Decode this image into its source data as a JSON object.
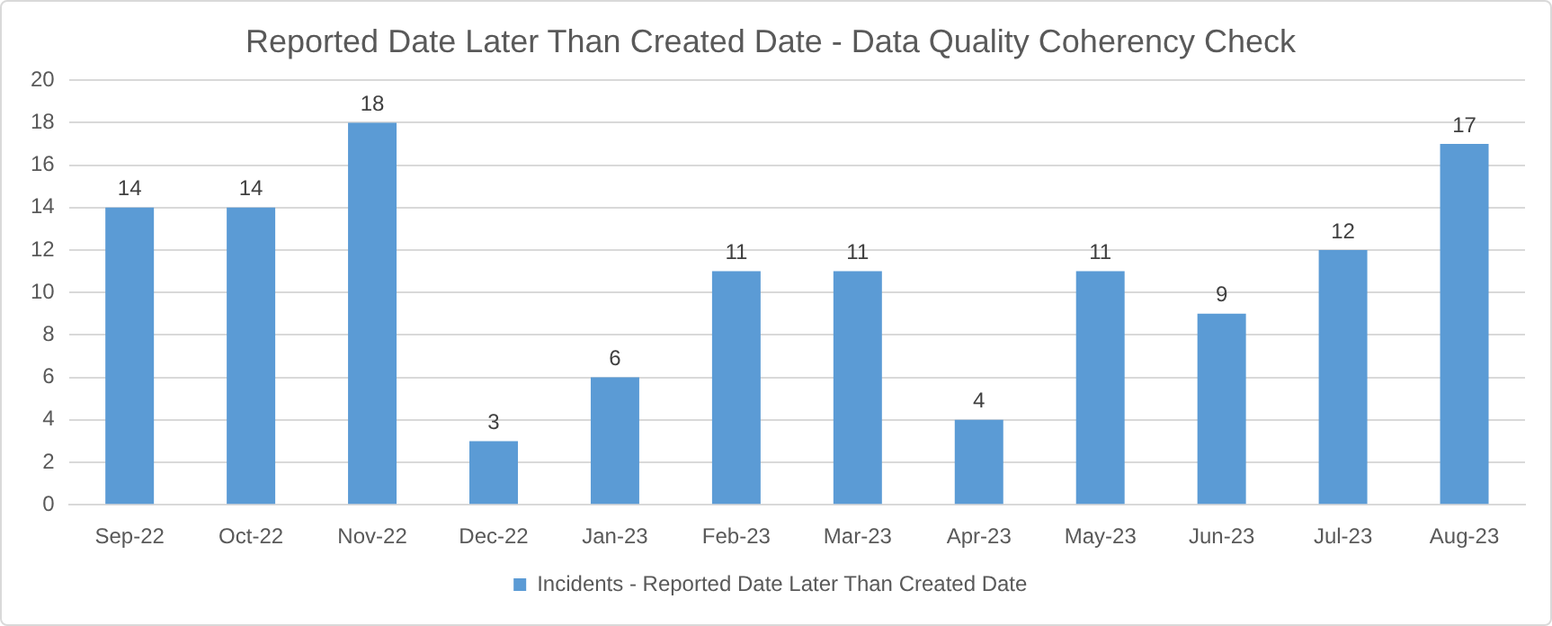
{
  "chart_data": {
    "type": "bar",
    "title": "Reported Date Later Than Created Date - Data Quality Coherency Check",
    "categories": [
      "Sep-22",
      "Oct-22",
      "Nov-22",
      "Dec-22",
      "Jan-23",
      "Feb-23",
      "Mar-23",
      "Apr-23",
      "May-23",
      "Jun-23",
      "Jul-23",
      "Aug-23"
    ],
    "series": [
      {
        "name": "Incidents - Reported Date Later Than Created Date",
        "color": "#5b9bd5",
        "values": [
          14,
          14,
          18,
          3,
          6,
          11,
          11,
          4,
          11,
          9,
          12,
          17
        ]
      }
    ],
    "ylim": [
      0,
      20
    ],
    "yticks": [
      0,
      2,
      4,
      6,
      8,
      10,
      12,
      14,
      16,
      18,
      20
    ],
    "grid": "y",
    "legend": "bottom",
    "data_labels": true
  }
}
